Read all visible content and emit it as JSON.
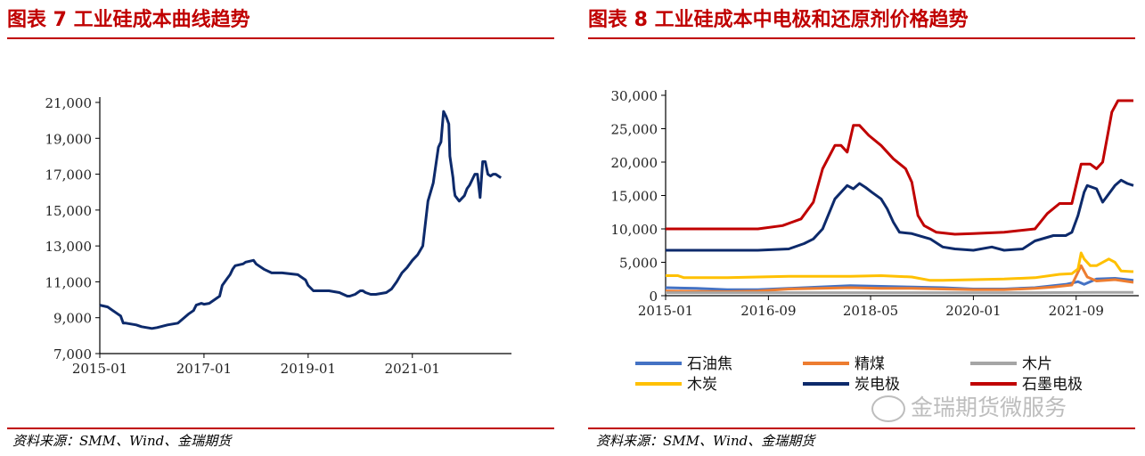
{
  "left": {
    "title": "图表 7 工业硅成本曲线趋势",
    "source": "资料来源：SMM、Wind、金瑞期货"
  },
  "right": {
    "title": "图表 8 工业硅成本中电极和还原剂价格趋势",
    "source": "资料来源：SMM、Wind、金瑞期货",
    "watermark": "金瑞期货微服务"
  },
  "colors": {
    "accent": "#c00000",
    "navy": "#0d2a6b"
  },
  "chart_data": [
    {
      "type": "line",
      "title": "",
      "xlabel": "",
      "ylabel": "",
      "xlim": [
        2015.0,
        2022.8
      ],
      "ylim": [
        7000,
        21000
      ],
      "x_ticks": [
        {
          "v": 2015.0,
          "label": "2015-01"
        },
        {
          "v": 2017.0,
          "label": "2017-01"
        },
        {
          "v": 2019.0,
          "label": "2019-01"
        },
        {
          "v": 2021.0,
          "label": "2021-01"
        }
      ],
      "y_ticks": [
        {
          "v": 7000,
          "label": "7,000"
        },
        {
          "v": 9000,
          "label": "9,000"
        },
        {
          "v": 11000,
          "label": "11,000"
        },
        {
          "v": 13000,
          "label": "13,000"
        },
        {
          "v": 15000,
          "label": "15,000"
        },
        {
          "v": 17000,
          "label": "17,000"
        },
        {
          "v": 19000,
          "label": "19,000"
        },
        {
          "v": 21000,
          "label": "21,000"
        }
      ],
      "grid": false,
      "series": [
        {
          "color": "#0d2a6b",
          "x": [
            2015.0,
            2015.15,
            2015.3,
            2015.4,
            2015.45,
            2015.5,
            2015.7,
            2015.8,
            2015.9,
            2016.0,
            2016.1,
            2016.3,
            2016.5,
            2016.7,
            2016.8,
            2016.85,
            2016.95,
            2017.0,
            2017.1,
            2017.2,
            2017.3,
            2017.35,
            2017.45,
            2017.5,
            2017.55,
            2017.6,
            2017.75,
            2017.8,
            2017.95,
            2018.0,
            2018.05,
            2018.15,
            2018.3,
            2018.5,
            2018.8,
            2018.95,
            2019.0,
            2019.1,
            2019.2,
            2019.4,
            2019.6,
            2019.75,
            2019.8,
            2019.9,
            2020.0,
            2020.05,
            2020.1,
            2020.2,
            2020.3,
            2020.4,
            2020.5,
            2020.6,
            2020.7,
            2020.8,
            2020.9,
            2021.0,
            2021.1,
            2021.2,
            2021.3,
            2021.4,
            2021.5,
            2021.55,
            2021.6,
            2021.65,
            2021.7,
            2021.72,
            2021.78,
            2021.8,
            2021.82,
            2021.9,
            2022.0,
            2022.05,
            2022.1,
            2022.2,
            2022.25,
            2022.3,
            2022.35,
            2022.4,
            2022.45,
            2022.5,
            2022.55,
            2022.6,
            2022.65,
            2022.7
          ],
          "y": [
            9700,
            9600,
            9300,
            9100,
            8700,
            8700,
            8600,
            8500,
            8450,
            8400,
            8450,
            8600,
            8700,
            9200,
            9400,
            9700,
            9800,
            9750,
            9800,
            10000,
            10200,
            10800,
            11200,
            11400,
            11700,
            11900,
            12000,
            12100,
            12200,
            12000,
            11900,
            11700,
            11500,
            11500,
            11400,
            11100,
            10800,
            10500,
            10500,
            10500,
            10400,
            10200,
            10200,
            10300,
            10500,
            10500,
            10400,
            10300,
            10300,
            10350,
            10400,
            10600,
            11000,
            11500,
            11800,
            12200,
            12500,
            13000,
            15500,
            16500,
            18500,
            18800,
            20500,
            20200,
            19800,
            18000,
            16800,
            16200,
            15800,
            15500,
            15800,
            16200,
            16400,
            17000,
            17000,
            15700,
            17700,
            17700,
            17000,
            16900,
            17000,
            17000,
            16900,
            16800
          ]
        }
      ]
    },
    {
      "type": "line",
      "title": "",
      "xlabel": "",
      "ylabel": "",
      "xlim": [
        2015.0,
        2022.6
      ],
      "ylim": [
        0,
        30000
      ],
      "x_ticks": [
        {
          "v": 2015.0,
          "label": "2015-01"
        },
        {
          "v": 2016.67,
          "label": "2016-09"
        },
        {
          "v": 2018.33,
          "label": "2018-05"
        },
        {
          "v": 2020.0,
          "label": "2020-01"
        },
        {
          "v": 2021.67,
          "label": "2021-09"
        }
      ],
      "y_ticks": [
        {
          "v": 0,
          "label": "0"
        },
        {
          "v": 5000,
          "label": "5,000"
        },
        {
          "v": 10000,
          "label": "10,000"
        },
        {
          "v": 15000,
          "label": "15,000"
        },
        {
          "v": 20000,
          "label": "20,000"
        },
        {
          "v": 25000,
          "label": "25,000"
        },
        {
          "v": 30000,
          "label": "30,000"
        }
      ],
      "grid": false,
      "legend_position": "bottom",
      "series": [
        {
          "name": "石油焦",
          "color": "#4472c4",
          "x": [
            2015.0,
            2015.5,
            2016.0,
            2016.5,
            2017.0,
            2017.5,
            2018.0,
            2018.5,
            2019.0,
            2019.5,
            2020.0,
            2020.5,
            2021.0,
            2021.3,
            2021.5,
            2021.7,
            2021.8,
            2022.0,
            2022.3,
            2022.6
          ],
          "y": [
            1200,
            1100,
            900,
            900,
            1100,
            1300,
            1500,
            1400,
            1300,
            1200,
            1000,
            1000,
            1200,
            1500,
            1700,
            2100,
            1700,
            2500,
            2600,
            2300
          ]
        },
        {
          "name": "精煤",
          "color": "#ed7d31",
          "x": [
            2015.0,
            2015.5,
            2016.0,
            2016.5,
            2017.0,
            2017.5,
            2018.0,
            2018.5,
            2019.0,
            2019.5,
            2020.0,
            2020.5,
            2021.0,
            2021.3,
            2021.6,
            2021.75,
            2021.85,
            2022.0,
            2022.3,
            2022.6
          ],
          "y": [
            700,
            650,
            600,
            700,
            1000,
            1100,
            1200,
            1100,
            1100,
            1000,
            900,
            900,
            1100,
            1300,
            1600,
            4500,
            2800,
            2200,
            2400,
            2000
          ]
        },
        {
          "name": "木片",
          "color": "#a5a5a5",
          "x": [
            2015.0,
            2016.0,
            2017.0,
            2018.0,
            2019.0,
            2020.0,
            2021.0,
            2022.0,
            2022.6
          ],
          "y": [
            450,
            450,
            450,
            450,
            450,
            450,
            450,
            500,
            500
          ]
        },
        {
          "name": "木炭",
          "color": "#ffc000",
          "x": [
            2015.0,
            2015.2,
            2015.3,
            2016.0,
            2016.5,
            2017.0,
            2017.5,
            2018.0,
            2018.5,
            2019.0,
            2019.3,
            2019.5,
            2020.0,
            2020.5,
            2021.0,
            2021.4,
            2021.6,
            2021.7,
            2021.75,
            2021.8,
            2021.9,
            2022.0,
            2022.2,
            2022.3,
            2022.4,
            2022.6
          ],
          "y": [
            3000,
            3000,
            2700,
            2700,
            2800,
            2900,
            2900,
            2900,
            3000,
            2800,
            2300,
            2300,
            2400,
            2500,
            2700,
            3200,
            3300,
            4000,
            6400,
            5500,
            4500,
            4500,
            5500,
            5000,
            3700,
            3600
          ]
        },
        {
          "name": "炭电极",
          "color": "#0d2a6b",
          "x": [
            2015.0,
            2016.5,
            2017.0,
            2017.25,
            2017.4,
            2017.55,
            2017.75,
            2017.85,
            2017.95,
            2018.05,
            2018.15,
            2018.25,
            2018.35,
            2018.5,
            2018.6,
            2018.7,
            2018.8,
            2019.0,
            2019.3,
            2019.5,
            2019.7,
            2020.0,
            2020.3,
            2020.5,
            2020.8,
            2021.0,
            2021.3,
            2021.5,
            2021.6,
            2021.7,
            2021.8,
            2021.85,
            2022.0,
            2022.1,
            2022.3,
            2022.4,
            2022.5,
            2022.6
          ],
          "y": [
            6800,
            6800,
            7000,
            7800,
            8500,
            10000,
            14500,
            15500,
            16500,
            16000,
            16800,
            16200,
            15500,
            14500,
            13000,
            11000,
            9500,
            9300,
            8500,
            7300,
            7000,
            6800,
            7300,
            6800,
            7000,
            8200,
            9000,
            9000,
            9500,
            12000,
            15500,
            16500,
            16000,
            14000,
            16500,
            17300,
            16800,
            16500
          ]
        },
        {
          "name": "石墨电极",
          "color": "#c00000",
          "x": [
            2015.0,
            2016.5,
            2016.9,
            2017.2,
            2017.4,
            2017.55,
            2017.75,
            2017.85,
            2017.95,
            2018.05,
            2018.15,
            2018.3,
            2018.5,
            2018.7,
            2018.9,
            2019.0,
            2019.1,
            2019.2,
            2019.4,
            2019.7,
            2020.0,
            2020.5,
            2021.0,
            2021.2,
            2021.4,
            2021.6,
            2021.75,
            2021.9,
            2022.0,
            2022.1,
            2022.2,
            2022.25,
            2022.35,
            2022.6
          ],
          "y": [
            10000,
            10000,
            10500,
            11500,
            14000,
            19000,
            22500,
            22500,
            21500,
            25500,
            25500,
            24000,
            22500,
            20500,
            19000,
            17000,
            12000,
            10500,
            9500,
            9200,
            9300,
            9500,
            10000,
            12300,
            13800,
            13800,
            19700,
            19700,
            19000,
            20000,
            25000,
            27500,
            29200,
            29200
          ]
        }
      ]
    }
  ]
}
